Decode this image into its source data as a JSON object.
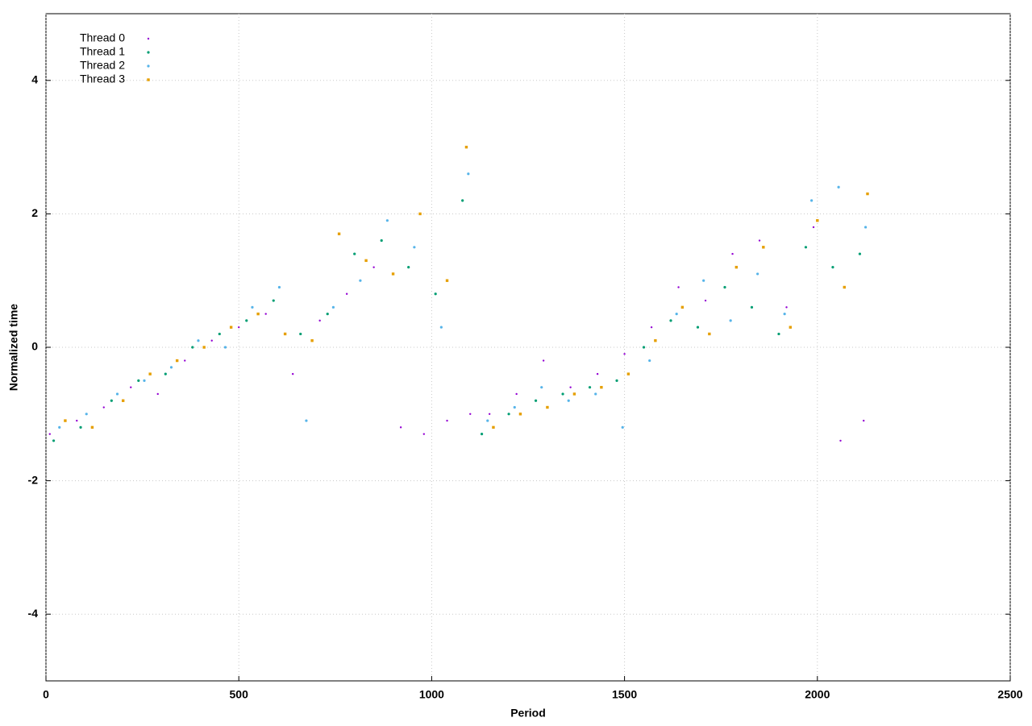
{
  "chart_data": {
    "type": "scatter",
    "xlabel": "Period",
    "ylabel": "Normalized time",
    "xlim": [
      0,
      2500
    ],
    "xticks": [
      0,
      500,
      1000,
      1500,
      2000,
      2500
    ],
    "ylim": [
      -5,
      5
    ],
    "yticks": [
      -4,
      -2,
      0,
      2,
      4
    ],
    "grid": true,
    "legend": "upper left",
    "series": [
      {
        "name": "Thread 0",
        "color": "#9400d3",
        "x": [
          10,
          80,
          150,
          220,
          290,
          360,
          430,
          500,
          570,
          640,
          710,
          780,
          850,
          920,
          980,
          1040,
          1100,
          1150,
          1220,
          1290,
          1360,
          1430,
          1500,
          1570,
          1640,
          1710,
          1780,
          1850,
          1920,
          1990,
          2060,
          2120
        ],
        "values": [
          -1.3,
          -1.1,
          -0.9,
          -0.6,
          -0.7,
          -0.2,
          0.1,
          0.3,
          0.5,
          -0.4,
          0.4,
          0.8,
          1.2,
          -1.2,
          -1.3,
          -1.1,
          -1.0,
          -1.0,
          -0.7,
          -0.2,
          -0.6,
          -0.4,
          -0.1,
          0.3,
          0.9,
          0.7,
          1.4,
          1.6,
          0.6,
          1.8,
          -1.4,
          -1.1
        ]
      },
      {
        "name": "Thread 1",
        "color": "#009e73",
        "x": [
          20,
          90,
          170,
          240,
          310,
          380,
          450,
          520,
          590,
          660,
          730,
          800,
          870,
          940,
          1010,
          1080,
          1130,
          1200,
          1270,
          1340,
          1410,
          1480,
          1550,
          1620,
          1690,
          1760,
          1830,
          1900,
          1970,
          2040,
          2110
        ],
        "values": [
          -1.4,
          -1.2,
          -0.8,
          -0.5,
          -0.4,
          0.0,
          0.2,
          0.4,
          0.7,
          0.2,
          0.5,
          1.4,
          1.6,
          1.2,
          0.8,
          2.2,
          -1.3,
          -1.0,
          -0.8,
          -0.7,
          -0.6,
          -0.5,
          0.0,
          0.4,
          0.3,
          0.9,
          0.6,
          0.2,
          1.5,
          1.2,
          1.4
        ]
      },
      {
        "name": "Thread 2",
        "color": "#56b4e9",
        "x": [
          35,
          105,
          185,
          255,
          325,
          395,
          465,
          535,
          605,
          675,
          745,
          815,
          885,
          955,
          1025,
          1095,
          1145,
          1215,
          1285,
          1355,
          1425,
          1495,
          1565,
          1635,
          1705,
          1775,
          1845,
          1915,
          1985,
          2055,
          2125
        ],
        "values": [
          -1.2,
          -1.0,
          -0.7,
          -0.5,
          -0.3,
          0.1,
          0.0,
          0.6,
          0.9,
          -1.1,
          0.6,
          1.0,
          1.9,
          1.5,
          0.3,
          2.6,
          -1.1,
          -0.9,
          -0.6,
          -0.8,
          -0.7,
          -1.2,
          -0.2,
          0.5,
          1.0,
          0.4,
          1.1,
          0.5,
          2.2,
          2.4,
          1.8
        ]
      },
      {
        "name": "Thread 3",
        "color": "#e69f00",
        "x": [
          50,
          120,
          200,
          270,
          340,
          410,
          480,
          550,
          620,
          690,
          760,
          830,
          900,
          970,
          1040,
          1090,
          1160,
          1230,
          1300,
          1370,
          1440,
          1510,
          1580,
          1650,
          1720,
          1790,
          1860,
          1930,
          2000,
          2070,
          2130
        ],
        "values": [
          -1.1,
          -1.2,
          -0.8,
          -0.4,
          -0.2,
          0.0,
          0.3,
          0.5,
          0.2,
          0.1,
          1.7,
          1.3,
          1.1,
          2.0,
          1.0,
          3.0,
          -1.2,
          -1.0,
          -0.9,
          -0.7,
          -0.6,
          -0.4,
          0.1,
          0.6,
          0.2,
          1.2,
          1.5,
          0.3,
          1.9,
          0.9,
          2.3
        ]
      }
    ]
  }
}
